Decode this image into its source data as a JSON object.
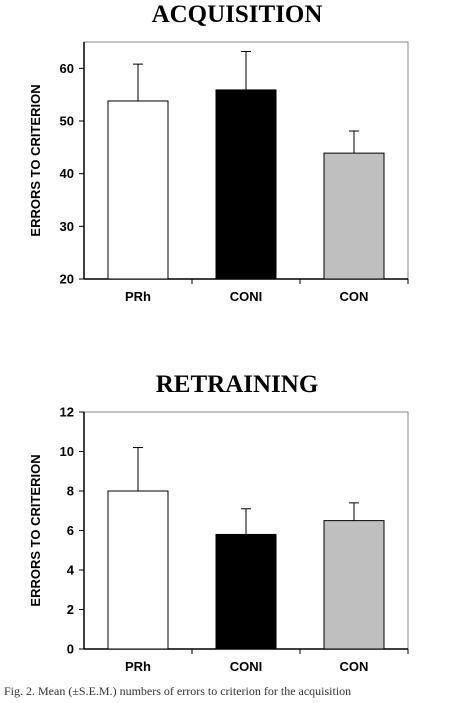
{
  "chart_data": [
    {
      "type": "bar",
      "title": "ACQUISITION",
      "ylabel": "ERRORS TO CRITERION",
      "categories": [
        "PRh",
        "CONI",
        "CON"
      ],
      "values": [
        53.8,
        55.9,
        43.9
      ],
      "errors": [
        7.0,
        7.3,
        4.2
      ],
      "bar_colors": [
        "#ffffff",
        "#000000",
        "#bfbfbf"
      ],
      "ylim": [
        20,
        65
      ],
      "yticks": [
        "20",
        "30",
        "40",
        "50",
        "60"
      ],
      "grid": false,
      "legend": "none"
    },
    {
      "type": "bar",
      "title": "RETRAINING",
      "ylabel": "ERRORS TO CRITERION",
      "categories": [
        "PRh",
        "CONI",
        "CON"
      ],
      "values": [
        8.0,
        5.8,
        6.5
      ],
      "errors": [
        2.2,
        1.3,
        0.9
      ],
      "bar_colors": [
        "#ffffff",
        "#000000",
        "#bfbfbf"
      ],
      "ylim": [
        0,
        12
      ],
      "yticks": [
        "0",
        "2",
        "4",
        "6",
        "8",
        "10",
        "12"
      ],
      "grid": false,
      "legend": "none"
    }
  ],
  "caption": "Fig. 2. Mean (±S.E.M.) numbers of errors to criterion for the acquisition"
}
